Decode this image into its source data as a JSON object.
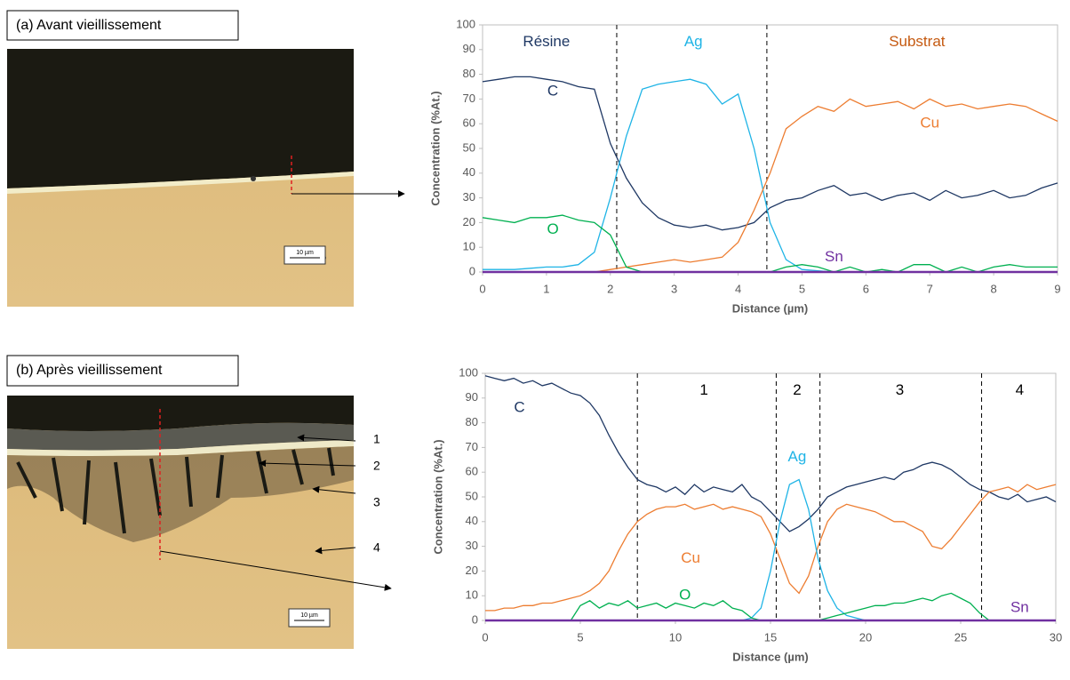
{
  "chart_data": [
    {
      "type": "line",
      "xlabel": "Distance (µm)",
      "ylabel": "Concentration (%At.)",
      "xlim": [
        0,
        9
      ],
      "ylim": [
        0,
        100
      ],
      "xticks": [
        0,
        1,
        2,
        3,
        4,
        5,
        6,
        7,
        8,
        9
      ],
      "yticks": [
        0,
        10,
        20,
        30,
        40,
        50,
        60,
        70,
        80,
        90,
        100
      ],
      "boundaries": [
        2.1,
        4.45
      ],
      "regions": [
        {
          "label": "Résine",
          "color": "#1f3864"
        },
        {
          "label": "Substrat",
          "color": "#c55a11"
        }
      ],
      "x": [
        0,
        0.25,
        0.5,
        0.75,
        1,
        1.25,
        1.5,
        1.75,
        2,
        2.25,
        2.5,
        2.75,
        3,
        3.25,
        3.5,
        3.75,
        4,
        4.25,
        4.5,
        4.75,
        5,
        5.25,
        5.5,
        5.75,
        6,
        6.25,
        6.5,
        6.75,
        7,
        7.25,
        7.5,
        7.75,
        8,
        8.25,
        8.5,
        8.75,
        9
      ],
      "series": [
        {
          "name": "C",
          "color": "#1f3864",
          "values": [
            77,
            78,
            79,
            79,
            78,
            77,
            75,
            74,
            52,
            38,
            28,
            22,
            19,
            18,
            19,
            17,
            18,
            20,
            26,
            29,
            30,
            33,
            35,
            31,
            32,
            29,
            31,
            32,
            29,
            33,
            30,
            31,
            33,
            30,
            31,
            34,
            36
          ]
        },
        {
          "name": "Ag",
          "color": "#1fb4e6",
          "values": [
            1,
            1,
            1,
            1.5,
            2,
            2,
            3,
            8,
            30,
            55,
            74,
            76,
            77,
            78,
            76,
            68,
            72,
            50,
            20,
            5,
            1,
            0.5,
            0,
            0,
            0,
            0,
            0,
            0,
            0,
            0,
            0,
            0,
            0,
            0,
            0,
            0,
            0
          ]
        },
        {
          "name": "Cu",
          "color": "#ed7d31",
          "values": [
            0,
            0,
            0,
            0,
            0,
            0,
            0,
            0,
            1,
            2,
            3,
            4,
            5,
            4,
            5,
            6,
            12,
            25,
            40,
            58,
            63,
            67,
            65,
            70,
            67,
            68,
            69,
            66,
            70,
            67,
            68,
            66,
            67,
            68,
            67,
            64,
            61
          ]
        },
        {
          "name": "O",
          "color": "#00b050",
          "values": [
            22,
            21,
            20,
            22,
            22,
            23,
            21,
            20,
            15,
            2,
            0,
            0,
            0,
            0,
            0,
            0,
            0,
            0,
            0,
            2,
            3,
            2,
            0,
            2,
            0,
            1,
            0,
            3,
            3,
            0,
            2,
            0,
            2,
            3,
            2,
            2,
            2
          ]
        },
        {
          "name": "Sn",
          "color": "#7030a0",
          "values": [
            0,
            0,
            0,
            0,
            0,
            0,
            0,
            0,
            0,
            0,
            0,
            0,
            0,
            0,
            0,
            0,
            0,
            0,
            0,
            0,
            0,
            0,
            0,
            0,
            0,
            0,
            0,
            0,
            0,
            0,
            0,
            0,
            0,
            0,
            0,
            0,
            0
          ]
        }
      ]
    },
    {
      "type": "line",
      "xlabel": "Distance (µm)",
      "ylabel": "Concentration (%At.)",
      "xlim": [
        0,
        30
      ],
      "ylim": [
        0,
        100
      ],
      "xticks": [
        0,
        5,
        10,
        15,
        20,
        25,
        30
      ],
      "yticks": [
        0,
        10,
        20,
        30,
        40,
        50,
        60,
        70,
        80,
        90,
        100
      ],
      "boundaries": [
        8,
        15.3,
        17.6,
        26.1
      ],
      "regions": [
        {
          "label": "1",
          "color": "#000000"
        },
        {
          "label": "2",
          "color": "#000000"
        },
        {
          "label": "3",
          "color": "#000000"
        },
        {
          "label": "4",
          "color": "#000000"
        }
      ],
      "x": [
        0,
        0.5,
        1,
        1.5,
        2,
        2.5,
        3,
        3.5,
        4,
        4.5,
        5,
        5.5,
        6,
        6.5,
        7,
        7.5,
        8,
        8.5,
        9,
        9.5,
        10,
        10.5,
        11,
        11.5,
        12,
        12.5,
        13,
        13.5,
        14,
        14.5,
        15,
        15.5,
        16,
        16.5,
        17,
        17.5,
        18,
        18.5,
        19,
        19.5,
        20,
        20.5,
        21,
        21.5,
        22,
        22.5,
        23,
        23.5,
        24,
        24.5,
        25,
        25.5,
        26,
        26.5,
        27,
        27.5,
        28,
        28.5,
        29,
        29.5,
        30
      ],
      "series": [
        {
          "name": "C",
          "color": "#1f3864",
          "values": [
            99,
            98,
            97,
            98,
            96,
            97,
            95,
            96,
            94,
            92,
            91,
            88,
            83,
            75,
            68,
            62,
            57,
            55,
            54,
            52,
            54,
            51,
            55,
            52,
            54,
            53,
            52,
            55,
            50,
            48,
            44,
            40,
            36,
            38,
            41,
            45,
            50,
            52,
            54,
            55,
            56,
            57,
            58,
            57,
            60,
            61,
            63,
            64,
            63,
            61,
            58,
            55,
            53,
            52,
            50,
            49,
            51,
            48,
            49,
            50,
            48
          ]
        },
        {
          "name": "Cu",
          "color": "#ed7d31",
          "values": [
            4,
            4,
            5,
            5,
            6,
            6,
            7,
            7,
            8,
            9,
            10,
            12,
            15,
            20,
            28,
            35,
            40,
            43,
            45,
            46,
            46,
            47,
            45,
            46,
            47,
            45,
            46,
            45,
            44,
            42,
            35,
            25,
            15,
            11,
            18,
            30,
            40,
            45,
            47,
            46,
            45,
            44,
            42,
            40,
            40,
            38,
            36,
            30,
            29,
            33,
            38,
            43,
            48,
            52,
            53,
            54,
            52,
            55,
            53,
            54,
            55
          ]
        },
        {
          "name": "Ag",
          "color": "#1fb4e6",
          "values": [
            0,
            0,
            0,
            0,
            0,
            0,
            0,
            0,
            0,
            0,
            0,
            0,
            0,
            0,
            0,
            0,
            0,
            0,
            0,
            0,
            0,
            0,
            0,
            0,
            0,
            0,
            0,
            0,
            1,
            5,
            20,
            40,
            55,
            57,
            45,
            25,
            12,
            5,
            2,
            1,
            0,
            0,
            0,
            0,
            0,
            0,
            0,
            0,
            0,
            0,
            0,
            0,
            0,
            0,
            0,
            0,
            0,
            0,
            0,
            0,
            0
          ]
        },
        {
          "name": "O",
          "color": "#00b050",
          "values": [
            0,
            0,
            0,
            0,
            0,
            0,
            0,
            0,
            0,
            0,
            6,
            8,
            5,
            7,
            6,
            8,
            5,
            6,
            7,
            5,
            7,
            6,
            5,
            7,
            6,
            8,
            5,
            4,
            1,
            0,
            0,
            0,
            0,
            0,
            0,
            0,
            1,
            2,
            3,
            4,
            5,
            6,
            6,
            7,
            7,
            8,
            9,
            8,
            10,
            11,
            9,
            7,
            3,
            0,
            0,
            0,
            0,
            0,
            0,
            0,
            0
          ]
        },
        {
          "name": "Sn",
          "color": "#7030a0",
          "values": [
            0,
            0,
            0,
            0,
            0,
            0,
            0,
            0,
            0,
            0,
            0,
            0,
            0,
            0,
            0,
            0,
            0,
            0,
            0,
            0,
            0,
            0,
            0,
            0,
            0,
            0,
            0,
            0,
            0,
            0,
            0,
            0,
            0,
            0,
            0,
            0,
            0,
            0,
            0,
            0,
            0,
            0,
            0,
            0,
            0,
            0,
            0,
            0,
            0,
            0,
            0,
            0,
            0,
            0,
            0,
            0,
            0,
            0,
            0,
            0,
            0
          ]
        }
      ]
    }
  ],
  "panels": [
    {
      "title": "(a) Avant vieillissement",
      "scale": "10 µm"
    },
    {
      "title": "(b) Après vieillissement",
      "scale": "10 µm",
      "layers": [
        "1",
        "2",
        "3",
        "4"
      ]
    }
  ]
}
